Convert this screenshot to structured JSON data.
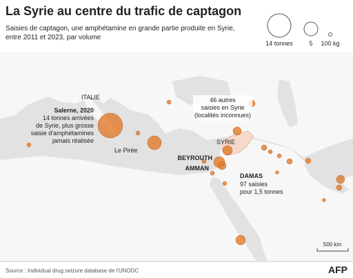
{
  "header": {
    "title": "La Syrie au centre du trafic de captagon",
    "subtitle": [
      "Saisies de captagon, une amphétamine en grande partie produite en Syrie,",
      "entre 2011 et 2023, par volume"
    ]
  },
  "legend": {
    "items": [
      "14 tonnes",
      "5",
      "100 kg"
    ]
  },
  "map": {
    "labels": {
      "italie": "ITALIE",
      "salerne": "Salerne, 2020",
      "salerne_note": [
        "14 tonnes arrivées",
        "de Syrie, plus grosse",
        "saisie d'amphétamines",
        "jamais réalisée"
      ],
      "piree": "Le Pirée",
      "syria_note": [
        "46 autres",
        "saisies en Syrie",
        "(localités inconnues)"
      ],
      "syrie": "SYRIE",
      "beyrouth": "BEYROUTH",
      "amman": "AMMAN",
      "damas": "DAMAS",
      "damas_note": [
        "97 saisies",
        "pour 1,5 tonnes"
      ]
    },
    "scale": "500 km"
  },
  "footer": {
    "source": "Source : Individual drug seizure database de l'UNODC",
    "logo": "AFP"
  }
}
